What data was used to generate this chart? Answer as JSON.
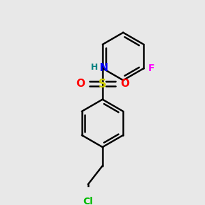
{
  "background_color": "#e8e8e8",
  "bond_color": "#000000",
  "atom_colors": {
    "S": "#cccc00",
    "O": "#ff0000",
    "N": "#0000ff",
    "H": "#008080",
    "F": "#ff00ff",
    "Cl": "#00bb00"
  },
  "line_width": 1.8,
  "figsize": [
    3.0,
    3.0
  ],
  "dpi": 100
}
